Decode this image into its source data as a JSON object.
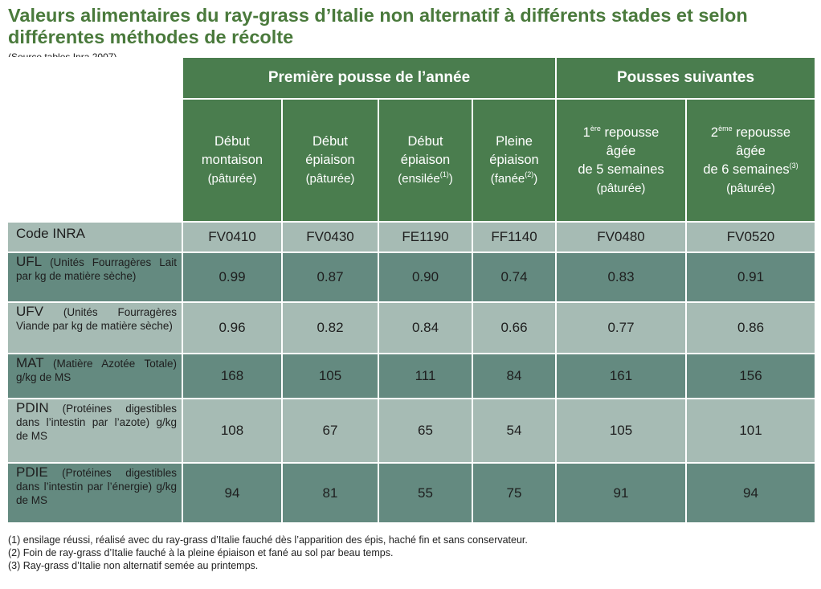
{
  "title": "Valeurs alimentaires du ray-grass d’Italie non alternatif à différents stades et selon différentes méthodes de récolte",
  "source": "(Source tables Inra 2007)",
  "groups": {
    "first": "Première pousse de l’année",
    "next": "Pousses suivantes"
  },
  "columns": [
    {
      "l1": "Début",
      "l2": "montaison",
      "l3": "(pâturée)"
    },
    {
      "l1": "Début",
      "l2": "épiaison",
      "l3": "(pâturée)"
    },
    {
      "l1": "Début",
      "l2": "épiaison",
      "l3": "(ensilée",
      "sup": "(1)",
      "l3end": ")"
    },
    {
      "l1": "Pleine",
      "l2": "épiaison",
      "l3": "(fanée",
      "sup": "(2)",
      "l3end": ")"
    },
    {
      "num": "1",
      "numsup": "ère",
      "l1rest": " repousse",
      "l2": "âgée",
      "l3": "de 5 semaines",
      "l4": "(pâturée)"
    },
    {
      "num": "2",
      "numsup": "ème",
      "l1rest": " repousse",
      "l2": "âgée",
      "l3": "de 6 semaines",
      "sup": "(3)",
      "l4": "(pâturée)"
    }
  ],
  "rows": [
    {
      "abbr": "Code INRA",
      "desc": "",
      "values": [
        "FV0410",
        "FV0430",
        "FE1190",
        "FF1140",
        "FV0480",
        "FV0520"
      ]
    },
    {
      "abbr": "UFL",
      "desc": " (Unités Fourragères Lait par kg de matière sèche)",
      "values": [
        "0.99",
        "0.87",
        "0.90",
        "0.74",
        "0.83",
        "0.91"
      ]
    },
    {
      "abbr": "UFV",
      "desc": " (Unités Fourragères Viande par kg de matière sèche)",
      "values": [
        "0.96",
        "0.82",
        "0.84",
        "0.66",
        "0.77",
        "0.86"
      ]
    },
    {
      "abbr": "MAT",
      "desc": " (Matière Azotée Totale) g/kg de MS",
      "values": [
        "168",
        "105",
        "111",
        "84",
        "161",
        "156"
      ]
    },
    {
      "abbr": "PDIN",
      "desc": " (Protéines digestibles dans l’intestin par l’azote) g/kg de MS",
      "values": [
        "108",
        "67",
        "65",
        "54",
        "105",
        "101"
      ]
    },
    {
      "abbr": "PDIE",
      "desc": " (Protéines digestibles dans l’intestin par l’énergie) g/kg de MS",
      "values": [
        "94",
        "81",
        "55",
        "75",
        "91",
        "94"
      ]
    }
  ],
  "footnotes": [
    "(1) ensilage réussi, réalisé avec du ray-grass d’Italie fauché dès l’apparition des épis, haché fin et sans conservateur.",
    "(2) Foin de ray-grass d’Italie fauché à la pleine épiaison et fané au sol par beau temps.",
    "(3) Ray-grass d’Italie non alternatif semée au printemps."
  ]
}
